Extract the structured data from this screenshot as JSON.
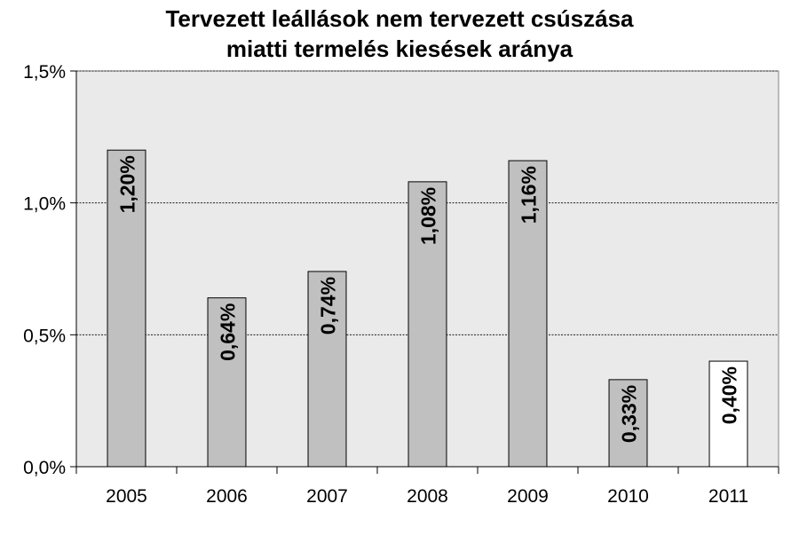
{
  "chart_data": {
    "type": "bar",
    "title_lines": [
      "Tervezett leállások nem tervezett csúszása",
      "miatti termelés kiesések aránya"
    ],
    "categories": [
      "2005",
      "2006",
      "2007",
      "2008",
      "2009",
      "2010",
      "2011"
    ],
    "values": [
      1.2,
      0.64,
      0.74,
      1.08,
      1.16,
      0.33,
      0.4
    ],
    "value_labels": [
      "1,20%",
      "0,64%",
      "0,74%",
      "1,08%",
      "1,16%",
      "0,33%",
      "0,40%"
    ],
    "y_ticks": [
      {
        "value": 0.0,
        "label": "0,0%"
      },
      {
        "value": 0.5,
        "label": "0,5%"
      },
      {
        "value": 1.0,
        "label": "1,0%"
      },
      {
        "value": 1.5,
        "label": "1,5%"
      }
    ],
    "ylim": [
      0,
      1.5
    ],
    "grid": true,
    "legend": "none",
    "colors": {
      "plot_background": "#eaeaea",
      "bar_default": "#c0c0c0",
      "bar_highlight": "#ffffff",
      "bar_border": "#000000",
      "gridline": "#000000"
    },
    "highlight_index": 6
  }
}
